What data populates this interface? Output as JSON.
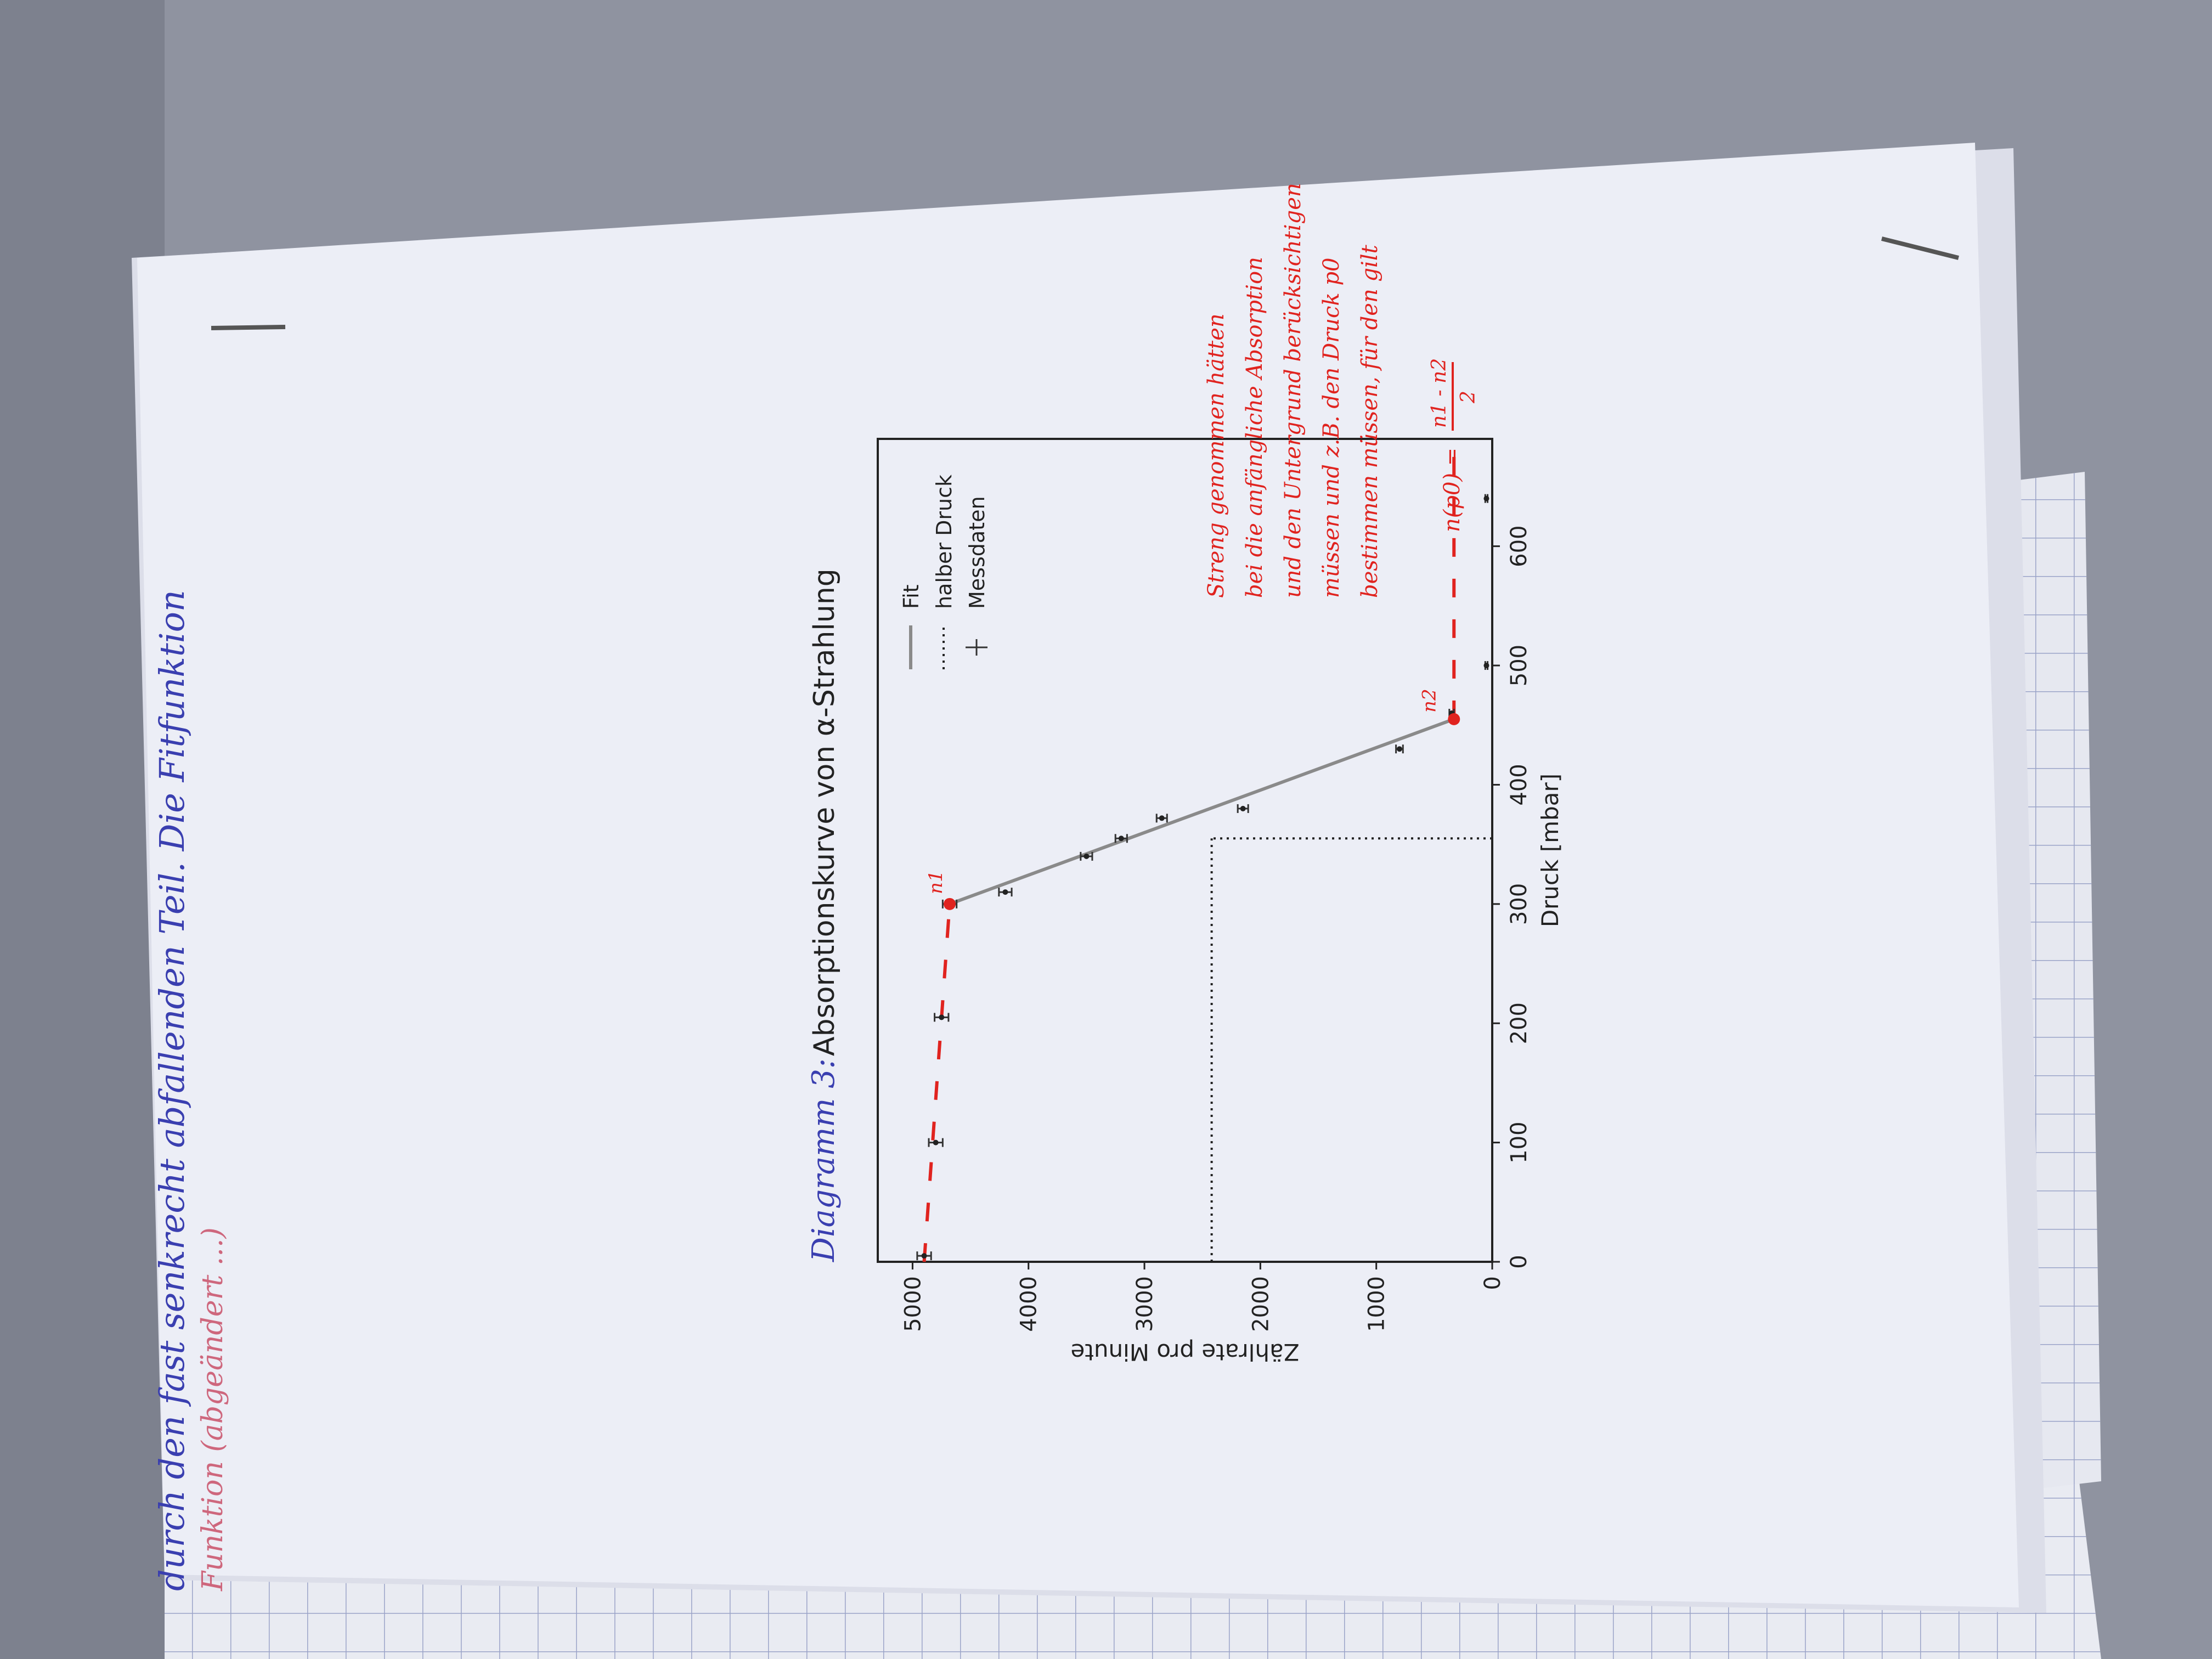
{
  "handwriting": {
    "top_line_1": "durch den fast senkrecht abfallenden Teil. Die Fitfunktion",
    "top_line_2": "Funktion  (abgeändert ...)",
    "caption_prefix": "Diagramm 3:",
    "notes": [
      "Streng genommen hätten",
      "bei die anfängliche Absorption",
      "und den Untergrund berücksichtigen",
      "müssen und z.B. den Druck p0",
      "bestimmen müssen, für den gilt"
    ],
    "formula_lhs": "n(p0) =",
    "formula_num": "n1 - n2",
    "formula_den": "2",
    "label_n1": "n1",
    "label_n2": "n2"
  },
  "chart_data": {
    "type": "line",
    "title": "Absorptionskurve von α-Strahlung",
    "xlabel": "Druck [mbar]",
    "ylabel": "Zählrate pro Minute",
    "xlim": [
      0,
      690
    ],
    "ylim": [
      0,
      5300
    ],
    "xticks": [
      "0",
      "100",
      "200",
      "300",
      "400",
      "500",
      "600"
    ],
    "xtick_values": [
      0,
      100,
      200,
      300,
      400,
      500,
      600
    ],
    "yticks": [
      "0",
      "1000",
      "2000",
      "3000",
      "4000",
      "5000"
    ],
    "ytick_values": [
      0,
      1000,
      2000,
      3000,
      4000,
      5000
    ],
    "legend": {
      "placement": "top-right",
      "entries": [
        "Fit",
        "halber Druck",
        "Messdaten"
      ]
    },
    "series": [
      {
        "name": "Messdaten",
        "style": "points-with-errorbars",
        "x": [
          5,
          100,
          205,
          300,
          310,
          340,
          355,
          372,
          380,
          430,
          460,
          500,
          640
        ],
        "y": [
          4900,
          4800,
          4750,
          4680,
          4200,
          3500,
          3200,
          2850,
          2150,
          800,
          350,
          50,
          50
        ],
        "yerr": [
          60,
          60,
          60,
          60,
          55,
          50,
          50,
          45,
          45,
          30,
          20,
          10,
          10
        ]
      },
      {
        "name": "Fit",
        "style": "line",
        "x": [
          300,
          455
        ],
        "y": [
          4680,
          330
        ]
      },
      {
        "name": "halber Druck",
        "style": "dotted",
        "x0": 355,
        "y0": 2420
      },
      {
        "name": "",
        "style": "handdrawn-dashed",
        "segments": [
          {
            "x": [
              0,
              300
            ],
            "y": [
              4900,
              4680
            ]
          },
          {
            "x": [
              455,
              690
            ],
            "y": [
              330,
              330
            ]
          }
        ]
      }
    ],
    "colors": {
      "fit": "#8a8a8a",
      "points": "#222222",
      "handwriting_red": "#e0231f",
      "handwriting_blue": "#3a3fb0"
    }
  }
}
